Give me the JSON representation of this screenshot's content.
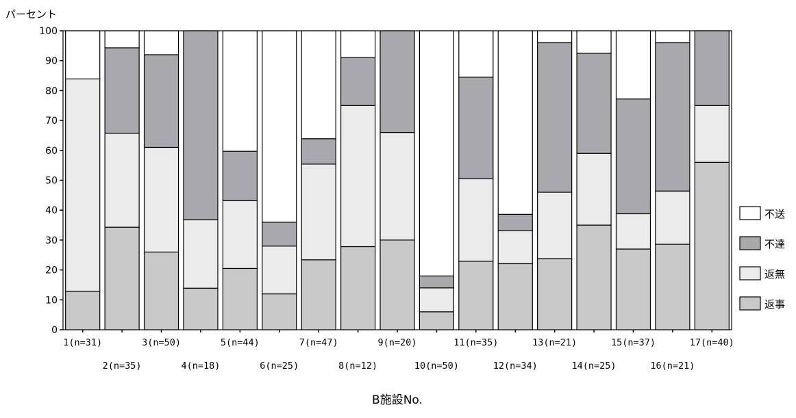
{
  "chart_data": {
    "type": "bar",
    "stacked": true,
    "percent": true,
    "title": "",
    "ylabel": "パーセント",
    "xlabel": "B施設No.",
    "ylim": [
      0,
      100
    ],
    "yticks": [
      0,
      10,
      20,
      30,
      40,
      50,
      60,
      70,
      80,
      90,
      100
    ],
    "grid": false,
    "legend_position": "right",
    "categories": [
      "1(n=31)",
      "2(n=35)",
      "3(n=50)",
      "4(n=18)",
      "5(n=44)",
      "6(n=25)",
      "7(n=47)",
      "8(n=12)",
      "9(n=20)",
      "10(n=50)",
      "11(n=35)",
      "12(n=34)",
      "13(n=21)",
      "14(n=25)",
      "15(n=37)",
      "16(n=21)",
      "17(n=40)"
    ],
    "series": [
      {
        "name": "返事",
        "color": "#c8c8c8",
        "values": [
          12.9,
          34.3,
          26.0,
          13.9,
          20.5,
          12.0,
          23.4,
          27.8,
          30.0,
          6.0,
          22.9,
          22.1,
          23.8,
          35.0,
          27.0,
          28.6,
          56.0
        ]
      },
      {
        "name": "返無",
        "color": "#ebebeb",
        "values": [
          71.0,
          31.4,
          35.0,
          22.9,
          22.7,
          16.0,
          32.0,
          47.2,
          36.0,
          8.0,
          27.6,
          11.0,
          22.2,
          24.0,
          11.8,
          17.8,
          19.0
        ]
      },
      {
        "name": "不達",
        "color": "#a9a9ad",
        "values": [
          0,
          28.6,
          31.0,
          63.2,
          16.5,
          8.0,
          8.5,
          16.0,
          34.0,
          4.0,
          34.0,
          5.5,
          50.0,
          33.5,
          38.4,
          49.6,
          25.0
        ]
      },
      {
        "name": "不送",
        "color": "#ffffff",
        "values": [
          16.1,
          5.7,
          8.0,
          0,
          40.3,
          64.0,
          36.1,
          9.0,
          0,
          82.0,
          15.5,
          61.4,
          4.0,
          7.5,
          22.8,
          4.0,
          0
        ]
      }
    ],
    "legend_order": [
      "不送",
      "不達",
      "返無",
      "返事"
    ]
  }
}
